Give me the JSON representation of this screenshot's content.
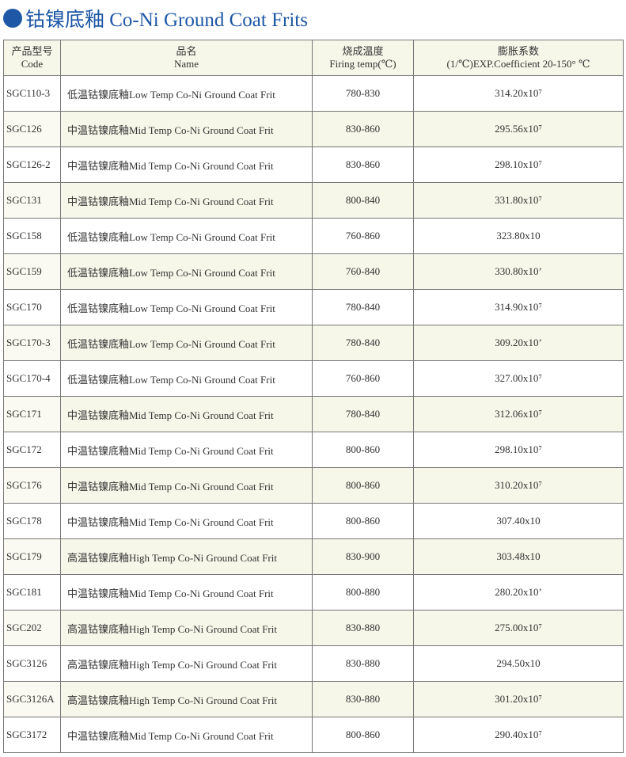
{
  "header": {
    "title": "钴镍底釉 Co-Ni Ground Coat Frits"
  },
  "table": {
    "columns": [
      {
        "zh": "产品型号",
        "en": "Code"
      },
      {
        "zh": "品名",
        "en": "Name"
      },
      {
        "zh": "烧成温度",
        "en": "Firing temp(℃)"
      },
      {
        "zh": "膨胀系数",
        "en": "(1/℃)EXP.Coefficient  20-150° ℃"
      }
    ],
    "rows": [
      [
        "SGC110-3",
        "低温钴镍底釉Low Temp Co-Ni Ground Coat Frit",
        "780-830",
        "314.20x10⁷"
      ],
      [
        "SGC126",
        "中温钴镍底釉Mid Temp Co-Ni Ground Coat Frit",
        "830-860",
        "295.56x10⁷"
      ],
      [
        "SGC126-2",
        "中温钴镍底釉Mid Temp Co-Ni Ground Coat Frit",
        "830-860",
        "298.10x10⁷"
      ],
      [
        "SGC131",
        "中温钴镍底釉Mid Temp Co-Ni Ground Coat Frit",
        "800-840",
        "331.80x10⁷"
      ],
      [
        "SGC158",
        "低温钴镍底釉Low Temp Co-Ni Ground Coat Frit",
        "760-860",
        "323.80x10"
      ],
      [
        "SGC159",
        "低温钴镍底釉Low Temp Co-Ni Ground Coat Frit",
        "760-840",
        "330.80x10’"
      ],
      [
        "SGC170",
        "低温钴镍底釉Low Temp Co-Ni Ground Coat Frit",
        "780-840",
        "314.90x10⁷"
      ],
      [
        "SGC170-3",
        "低温钴镍底釉Low Temp Co-Ni Ground Coat Frit",
        "780-840",
        "309.20x10’"
      ],
      [
        "SGC170-4",
        "低温钴镍底釉Low Temp Co-Ni Ground Coat Frit",
        "760-860",
        "327.00x10⁷"
      ],
      [
        "SGC171",
        "中温钴镍底釉Mid Temp Co-Ni Ground Coat Frit",
        "780-840",
        "312.06x10⁷"
      ],
      [
        "SGC172",
        "中温钴镍底釉Mid Temp Co-Ni Ground Coat Frit",
        "800-860",
        "298.10x10⁷"
      ],
      [
        "SGC176",
        "中温钴镍底釉Mid Temp Co-Ni Ground Coat Frit",
        "800-860",
        "310.20x10⁷"
      ],
      [
        "SGC178",
        "中温钴镍底釉Mid Temp Co-Ni Ground Coat Frit",
        "800-860",
        "307.40x10"
      ],
      [
        "SGC179",
        "高温钴镍底釉High Temp Co-Ni Ground Coat Frit",
        "830-900",
        "303.48x10"
      ],
      [
        "SGC181",
        "中温钴镍底釉Mid Temp Co-Ni Ground Coat Frit",
        "800-880",
        "280.20x10’"
      ],
      [
        "SGC202",
        "高温钴镍底釉High Temp Co-Ni Ground Coat Frit",
        "830-880",
        "275.00x10⁷"
      ],
      [
        "SGC3126",
        "高温钴镍底釉High Temp Co-Ni Ground Coat Frit",
        "830-880",
        "294.50x10"
      ],
      [
        "SGC3126A",
        "高温钴镍底釉High Temp Co-Ni Ground Coat Frit",
        "830-880",
        "301.20x10⁷"
      ],
      [
        "SGC3172",
        "中温钴镍底釉Mid Temp Co-Ni Ground Coat Frit",
        "800-860",
        "290.40x10⁷"
      ]
    ]
  }
}
